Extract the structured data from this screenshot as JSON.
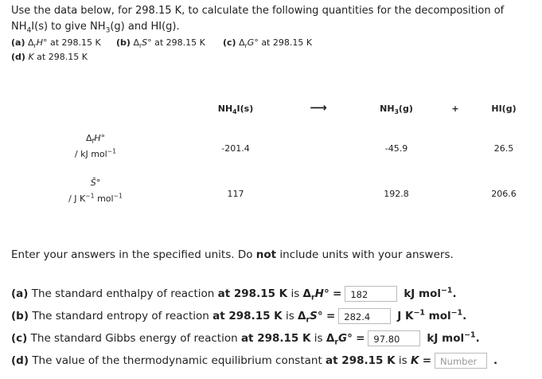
{
  "intro": [
    "Use the data below, for 298.15 K, to calculate the following quantities for the decomposition of NH",
    "4",
    "I(s) to give NH",
    "3",
    "(g) and HI(g)."
  ],
  "parts": [
    {
      "label": "(a)",
      "symbol": [
        "Δ",
        "r",
        "H",
        "°"
      ],
      "text": "at 298.15 K"
    },
    {
      "label": "(b)",
      "symbol": [
        "Δ",
        "r",
        "S",
        "°"
      ],
      "text": "at 298.15 K"
    },
    {
      "label": "(c)",
      "symbol": [
        "Δ",
        "r",
        "G",
        "°"
      ],
      "text": "at 298.15 K"
    },
    {
      "label": "(d)",
      "symbol": [
        "K"
      ],
      "text": "at 298.15 K"
    }
  ],
  "table": {
    "header": [
      [
        "NH",
        "4",
        "I(s)"
      ],
      "⟶",
      [
        "NH",
        "3",
        "(g)"
      ],
      "+",
      "HI(g)"
    ],
    "rows": [
      {
        "symbol": [
          "Δ",
          "f",
          "H",
          "°"
        ],
        "unit": [
          "/ kJ mol",
          "−1"
        ],
        "values": [
          -201.4,
          -45.9,
          26.5
        ]
      },
      {
        "symbol": [
          "S̄",
          "°"
        ],
        "unit": [
          "/ J K",
          "−1",
          " mol",
          "−1"
        ],
        "values": [
          117,
          192.8,
          206.6
        ]
      }
    ]
  },
  "instruction": [
    "Enter your answers in the specified units. Do ",
    "not",
    " include units with your answers."
  ],
  "questions": [
    {
      "label": "(a)",
      "text": "The standard enthalpy of reaction",
      "bold": "at 298.15 K",
      "is": "is",
      "symbol": [
        "Δ",
        "r",
        "H",
        "°"
      ],
      "eq": "=",
      "answer": "182",
      "unit": [
        "kJ mol",
        "−1",
        "."
      ]
    },
    {
      "label": "(b)",
      "text": "The standard entropy of reaction",
      "bold": "at 298.15 K",
      "is": "is",
      "symbol": [
        "Δ",
        "r",
        "S",
        "°"
      ],
      "eq": "=",
      "answer": "282.4",
      "unit": [
        "J K",
        "−1",
        " mol",
        "−1",
        "."
      ]
    },
    {
      "label": "(c)",
      "text": "The standard Gibbs energy of reaction",
      "bold": "at 298.15 K",
      "is": "is",
      "symbol": [
        "Δ",
        "r",
        "G",
        "°"
      ],
      "eq": "=",
      "answer": "97.80",
      "unit": [
        "kJ mol",
        "−1",
        "."
      ]
    },
    {
      "label": "(d)",
      "text": "The value of the thermodynamic equilibrium constant",
      "bold": "at 298.15 K",
      "is": "is",
      "symbol": [
        "K"
      ],
      "eq": "=",
      "placeholder": "Number",
      "end": "."
    }
  ]
}
